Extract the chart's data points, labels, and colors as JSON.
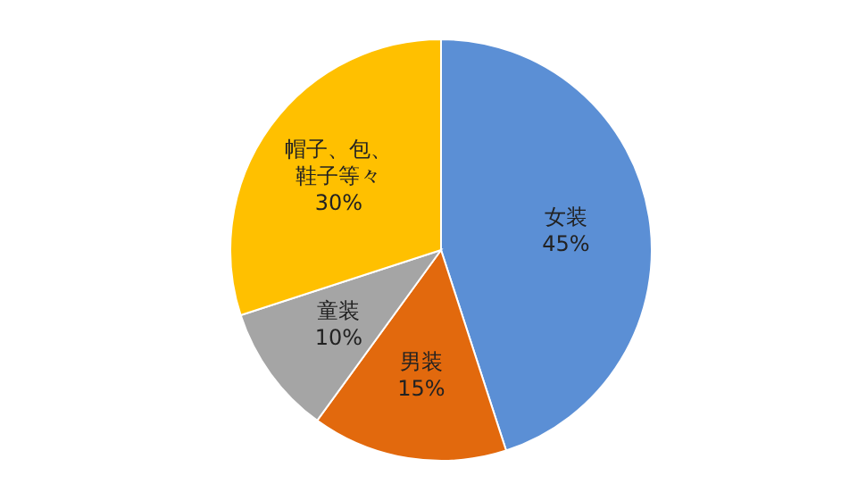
{
  "chart_data": {
    "type": "pie",
    "categories": [
      "女装",
      "男装",
      "童装",
      "帽子、包、鞋子等々"
    ],
    "values": [
      45,
      15,
      10,
      30
    ],
    "colors": [
      "#5b8fd5",
      "#e2690d",
      "#a5a5a5",
      "#ffc000"
    ],
    "value_labels": [
      "45%",
      "15%",
      "10%",
      "30%"
    ]
  }
}
